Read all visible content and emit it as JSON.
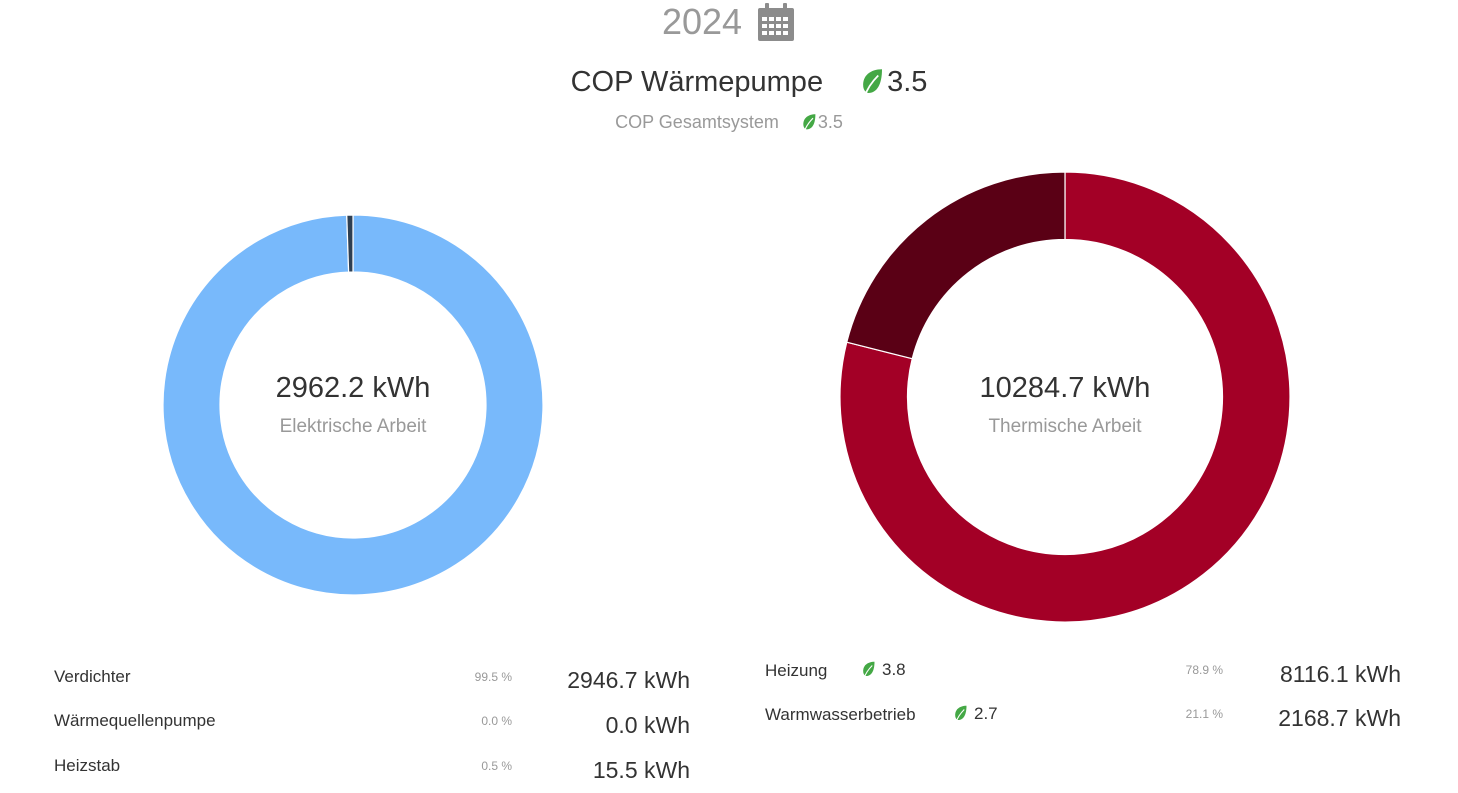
{
  "header": {
    "year": "2024",
    "calendar_icon": "calendar-icon"
  },
  "cop": {
    "main_label": "COP Wärmepumpe",
    "main_value": "3.5",
    "system_label": "COP Gesamtsystem",
    "system_value": "3.5",
    "leaf_icon": "leaf-icon",
    "leaf_color": "#44a845"
  },
  "chart_data": [
    {
      "type": "pie",
      "variant": "donut",
      "center_value": "2962.2 kWh",
      "center_label": "Elektrische Arbeit",
      "categories": [
        "Verdichter",
        "Wärmequellenpumpe",
        "Heizstab"
      ],
      "values": [
        2946.7,
        0.0,
        15.5
      ],
      "colors": [
        "#78b9fb",
        "#4a6f95",
        "#2e3f52"
      ]
    },
    {
      "type": "pie",
      "variant": "donut",
      "center_value": "10284.7 kWh",
      "center_label": "Thermische Arbeit",
      "categories": [
        "Heizung",
        "Warmwasserbetrieb"
      ],
      "values": [
        8116.1,
        2168.7
      ],
      "colors": [
        "#a30026",
        "#5a0015"
      ]
    }
  ],
  "electric_rows": [
    {
      "name": "Verdichter",
      "pct": "99.5 %",
      "kwh": "2946.7 kWh"
    },
    {
      "name": "Wärmequellenpumpe",
      "pct": "0.0 %",
      "kwh": "0.0 kWh"
    },
    {
      "name": "Heizstab",
      "pct": "0.5 %",
      "kwh": "15.5 kWh"
    }
  ],
  "thermal_rows": [
    {
      "name": "Heizung",
      "cop": "3.8",
      "pct": "78.9 %",
      "kwh": "8116.1 kWh"
    },
    {
      "name": "Warmwasserbetrieb",
      "cop": "2.7",
      "pct": "21.1 %",
      "kwh": "2168.7 kWh"
    }
  ]
}
